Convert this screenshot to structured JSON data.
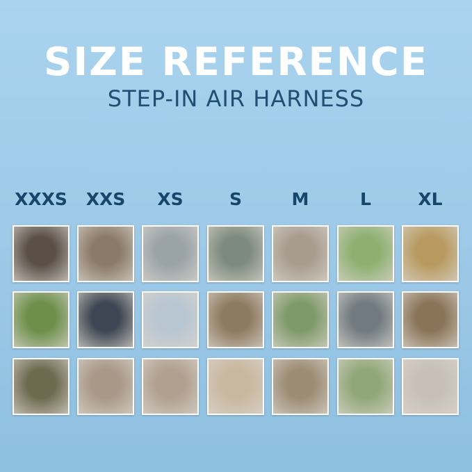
{
  "header": {
    "title": "SIZE REFERENCE",
    "subtitle": "STEP-IN AIR HARNESS"
  },
  "sizes": [
    "XXXS",
    "XXS",
    "XS",
    "S",
    "M",
    "L",
    "XL"
  ],
  "photo_colors": [
    [
      "#5a5048",
      "#8a7a68",
      "#9aa3a8",
      "#7d8a7e",
      "#a89c8e",
      "#8db070",
      "#b89a60"
    ],
    [
      "#6c8f4a",
      "#3d4652",
      "#b8c6d2",
      "#8e7a60",
      "#7f9a6a",
      "#707a80",
      "#8a7458"
    ],
    [
      "#6e6a50",
      "#a89888",
      "#b0a090",
      "#c9b8a0",
      "#9c8c74",
      "#90a878",
      "#c8c0b8"
    ]
  ]
}
